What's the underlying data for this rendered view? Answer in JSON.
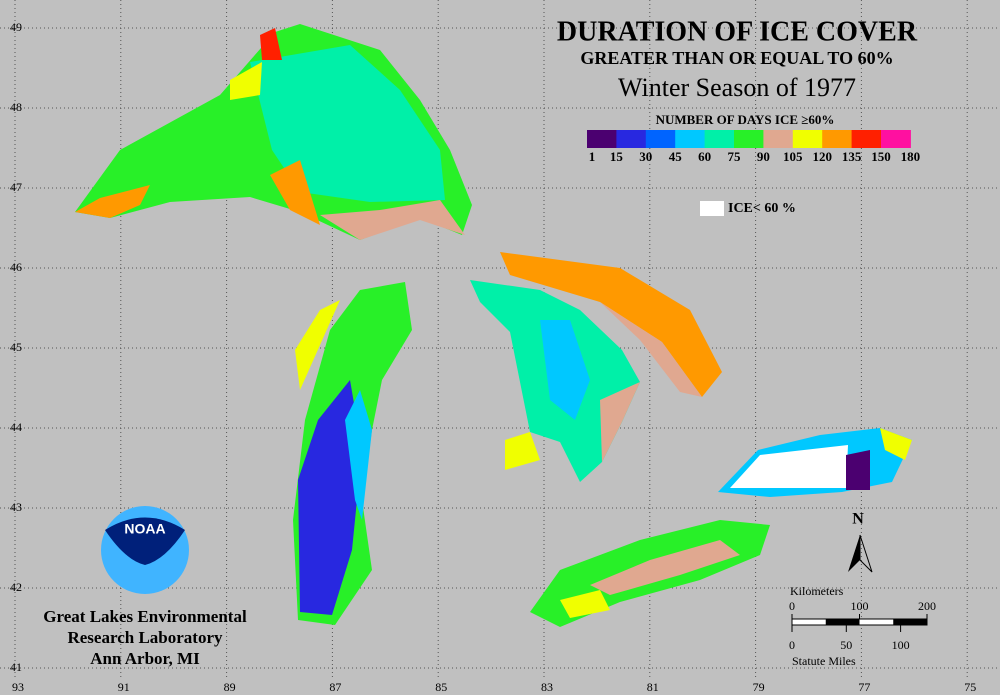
{
  "title": "DURATION OF ICE COVER",
  "subtitle": "GREATER THAN OR EQUAL TO 60%",
  "season": "Winter Season of 1977",
  "legend": {
    "title": "NUMBER OF DAYS ICE ≥60%",
    "labels": [
      1,
      15,
      30,
      45,
      60,
      75,
      90,
      105,
      120,
      135,
      150,
      180
    ],
    "colors": [
      "#4b0070",
      "#2828e0",
      "#0064ff",
      "#00c8ff",
      "#00f0a8",
      "#28f028",
      "#e0a890",
      "#f0ff00",
      "#ff9900",
      "#ff2000",
      "#ff10a0"
    ],
    "ice_label": "ICE< 60 %"
  },
  "graticule": {
    "lon_ticks": [
      93,
      91,
      89,
      87,
      85,
      83,
      81,
      79,
      77,
      75
    ],
    "lat_ticks": [
      49,
      48,
      47,
      46,
      45,
      44,
      43,
      42,
      41
    ]
  },
  "scale": {
    "km_label": "Kilometers",
    "km_ticks": [
      0,
      100,
      200
    ],
    "mi_label": "Statute Miles",
    "mi_ticks": [
      0,
      50,
      100
    ]
  },
  "north": "N",
  "logo": "NOAA",
  "credit": [
    "Great Lakes Environmental",
    "Research Laboratory",
    "Ann Arbor, MI"
  ]
}
